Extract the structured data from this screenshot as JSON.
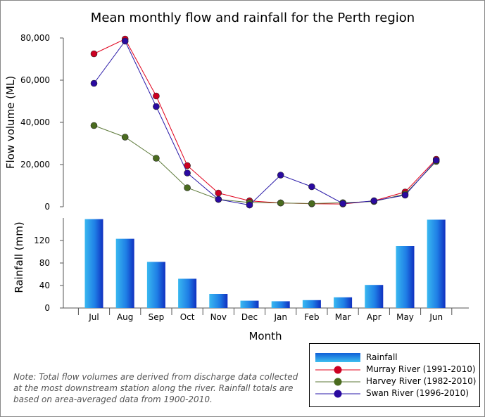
{
  "chart_data": [
    {
      "type": "line",
      "title": "Mean monthly flow and rainfall for the Perth region",
      "ylabel": "Flow volume (ML)",
      "ylim": [
        0,
        80000
      ],
      "yticks": [
        "0",
        "20,000",
        "40,000",
        "60,000",
        "80,000"
      ],
      "grid": false,
      "categories": [
        "Jul",
        "Aug",
        "Sep",
        "Oct",
        "Nov",
        "Dec",
        "Jan",
        "Feb",
        "Mar",
        "Apr",
        "May",
        "Jun"
      ],
      "series": [
        {
          "name": "Murray River (1991-2010)",
          "color": "#e0001b",
          "marker": "#cc0022",
          "values": [
            72500,
            79500,
            52500,
            19500,
            6500,
            2800,
            1800,
            1400,
            1300,
            2800,
            7000,
            22500
          ]
        },
        {
          "name": "Harvey River (1982-2010)",
          "color": "#5d7a3a",
          "marker": "#4a6b1f",
          "values": [
            38500,
            33000,
            23000,
            9000,
            3500,
            2000,
            1800,
            1500,
            1900,
            2500,
            6000,
            21500
          ]
        },
        {
          "name": "Swan River (1996-2010)",
          "color": "#2a1aa8",
          "marker": "#2a0aa0",
          "values": [
            58500,
            78500,
            47500,
            16000,
            3500,
            800,
            15000,
            9500,
            1500,
            2800,
            5500,
            22000
          ]
        }
      ]
    },
    {
      "type": "bar",
      "ylabel": "Rainfall (mm)",
      "xlabel": "Month",
      "ylim": [
        0,
        160
      ],
      "yticks": [
        "0",
        "40",
        "80",
        "120"
      ],
      "categories": [
        "Jul",
        "Aug",
        "Sep",
        "Oct",
        "Nov",
        "Dec",
        "Jan",
        "Feb",
        "Mar",
        "Apr",
        "May",
        "Jun"
      ],
      "series": [
        {
          "name": "Rainfall",
          "color": "#1f6fe0",
          "values": [
            158,
            123,
            82,
            52,
            25,
            13,
            12,
            14,
            19,
            41,
            110,
            157
          ]
        }
      ]
    }
  ],
  "note": "Note: Total flow volumes are derived from discharge data collected at the most downstream station along the river. Rainfall totals are based on area-averaged data from 1900-2010."
}
